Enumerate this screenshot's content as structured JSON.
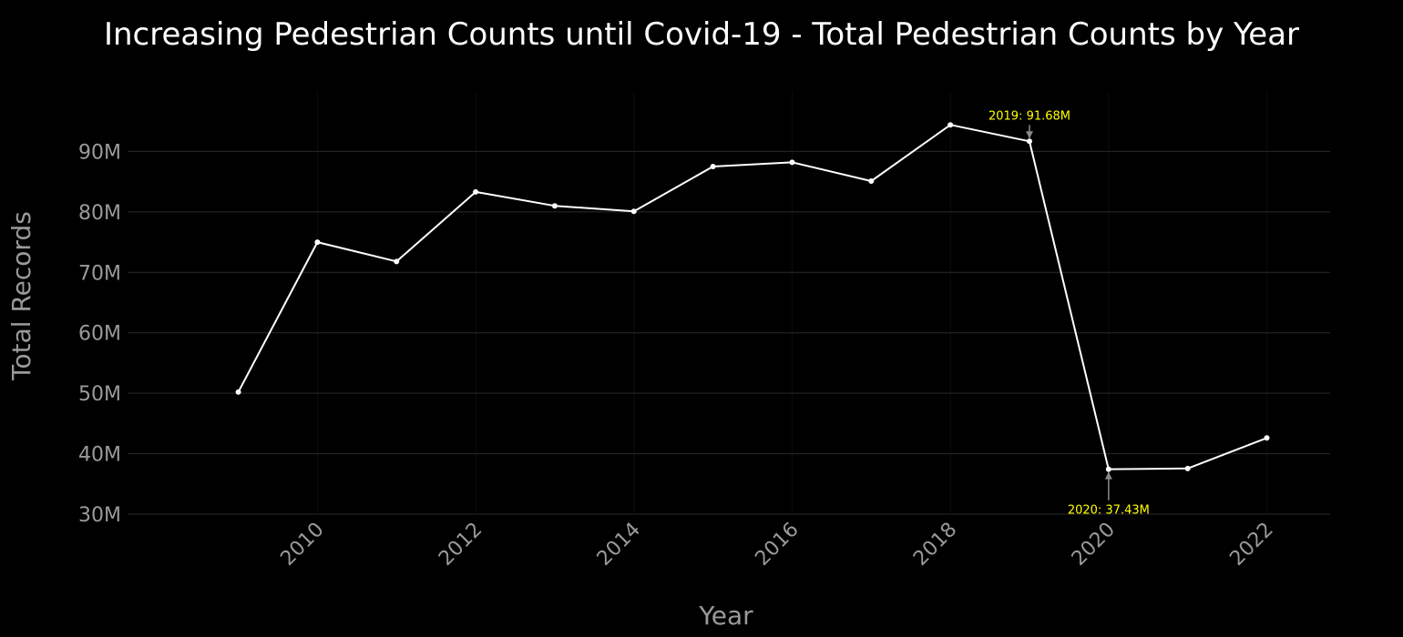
{
  "chart_data": {
    "type": "line",
    "title": "Increasing Pedestrian Counts until Covid-19 - Total Pedestrian Counts by Year",
    "xlabel": "Year",
    "ylabel": "Total Records",
    "x": [
      2009,
      2010,
      2011,
      2012,
      2013,
      2014,
      2015,
      2016,
      2017,
      2018,
      2019,
      2020,
      2021,
      2022
    ],
    "series": [
      {
        "values": [
          50.2,
          75.0,
          71.8,
          83.3,
          81.0,
          80.1,
          87.5,
          88.2,
          85.1,
          94.4,
          91.68,
          37.43,
          37.55,
          42.6
        ]
      }
    ],
    "xlim": [
      2007.6,
      2022.8
    ],
    "ylim": [
      30,
      100
    ],
    "x_ticks": [
      2010,
      2012,
      2014,
      2016,
      2018,
      2020,
      2022
    ],
    "y_ticks": [
      30,
      40,
      50,
      60,
      70,
      80,
      90
    ],
    "y_tick_labels": [
      "30M",
      "40M",
      "50M",
      "60M",
      "70M",
      "80M",
      "90M"
    ],
    "grid": true,
    "annotations": [
      {
        "x": 2019,
        "y": 91.68,
        "text": "2019:   91.68M",
        "position": "above"
      },
      {
        "x": 2020,
        "y": 37.43,
        "text": "2020:   37.43M",
        "position": "below"
      }
    ],
    "colors": {
      "background": "#000000",
      "line": "#ffffff",
      "grid": "#2a2a2a",
      "annotation_text": "#ffff00",
      "arrow": "#8a8a8a",
      "axis_text": "#9a9a9a",
      "title": "#ffffff"
    }
  }
}
